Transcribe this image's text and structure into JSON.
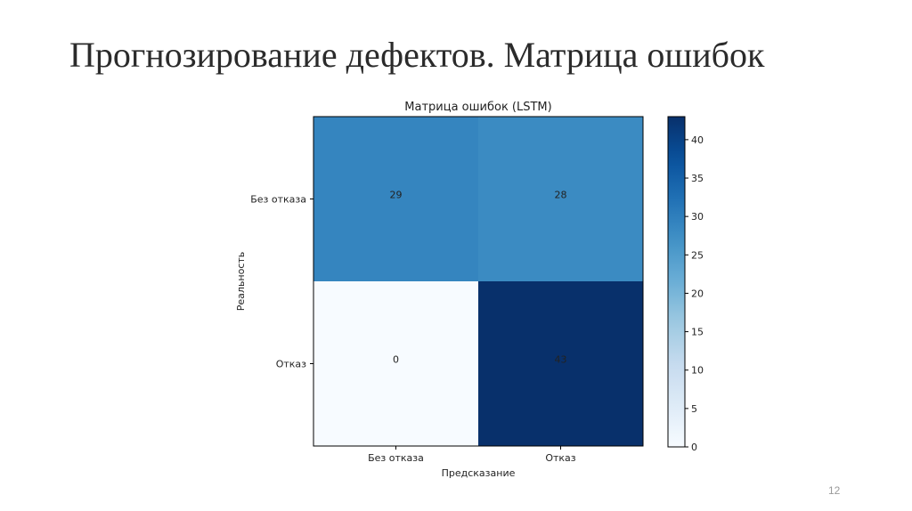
{
  "slide": {
    "title": "Прогнозирование дефектов. Матрица ошибок",
    "page_number": "12"
  },
  "chart_data": {
    "type": "heatmap",
    "title": "Матрица ошибок (LSTM)",
    "xlabel": "Предсказание",
    "ylabel": "Реальность",
    "x_categories": [
      "Без отказа",
      "Отказ"
    ],
    "y_categories": [
      "Без отказа",
      "Отказ"
    ],
    "values": [
      [
        29,
        28
      ],
      [
        0,
        43
      ]
    ],
    "colorscale": "Blues",
    "colorbar": {
      "range": [
        0,
        43
      ],
      "ticks": [
        0,
        5,
        10,
        15,
        20,
        25,
        30,
        35,
        40
      ]
    }
  }
}
